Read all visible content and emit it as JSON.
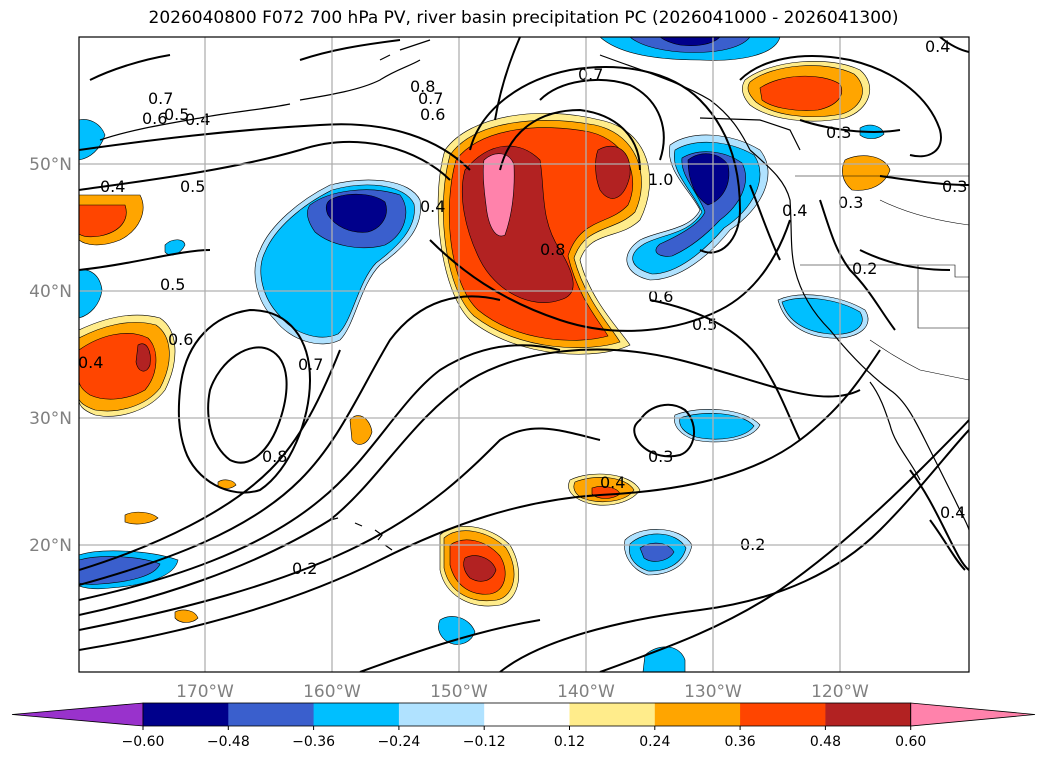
{
  "title": "2026040800 F072 700 hPa PV, river basin precipitation PC (2026041000 - 2026041300)",
  "lat_labels": [
    "50°N",
    "40°N",
    "30°N",
    "20°N"
  ],
  "lon_labels": [
    "170°W",
    "160°W",
    "150°W",
    "140°W",
    "130°W",
    "120°W"
  ],
  "contour_labels": [
    "0.7",
    "0.6",
    "0.5",
    "0.4",
    "0.8",
    "0.7",
    "0.6",
    "0.7",
    "0.4",
    "0.4",
    "0.5",
    "0.4",
    "0.5",
    "0.6",
    "0.7",
    "0.8",
    "0.8",
    "1.0",
    "0.6",
    "0.5",
    "0.3",
    "0.3",
    "0.3",
    "0.2",
    "0.4",
    "0.4",
    "0.3",
    "0.2",
    "0.2",
    "0.4",
    "0.4"
  ],
  "colorbar": {
    "ticks": [
      "−0.60",
      "−0.48",
      "−0.36",
      "−0.24",
      "−0.12",
      "0.12",
      "0.24",
      "0.36",
      "0.48",
      "0.60"
    ],
    "colors": [
      "#9932cc",
      "#00008b",
      "#3a5fcd",
      "#00bfff",
      "#b0e2ff",
      "#ffffff",
      "#ffec8b",
      "#ffa500",
      "#ff4500",
      "#b22222",
      "#ff82ab"
    ]
  }
}
